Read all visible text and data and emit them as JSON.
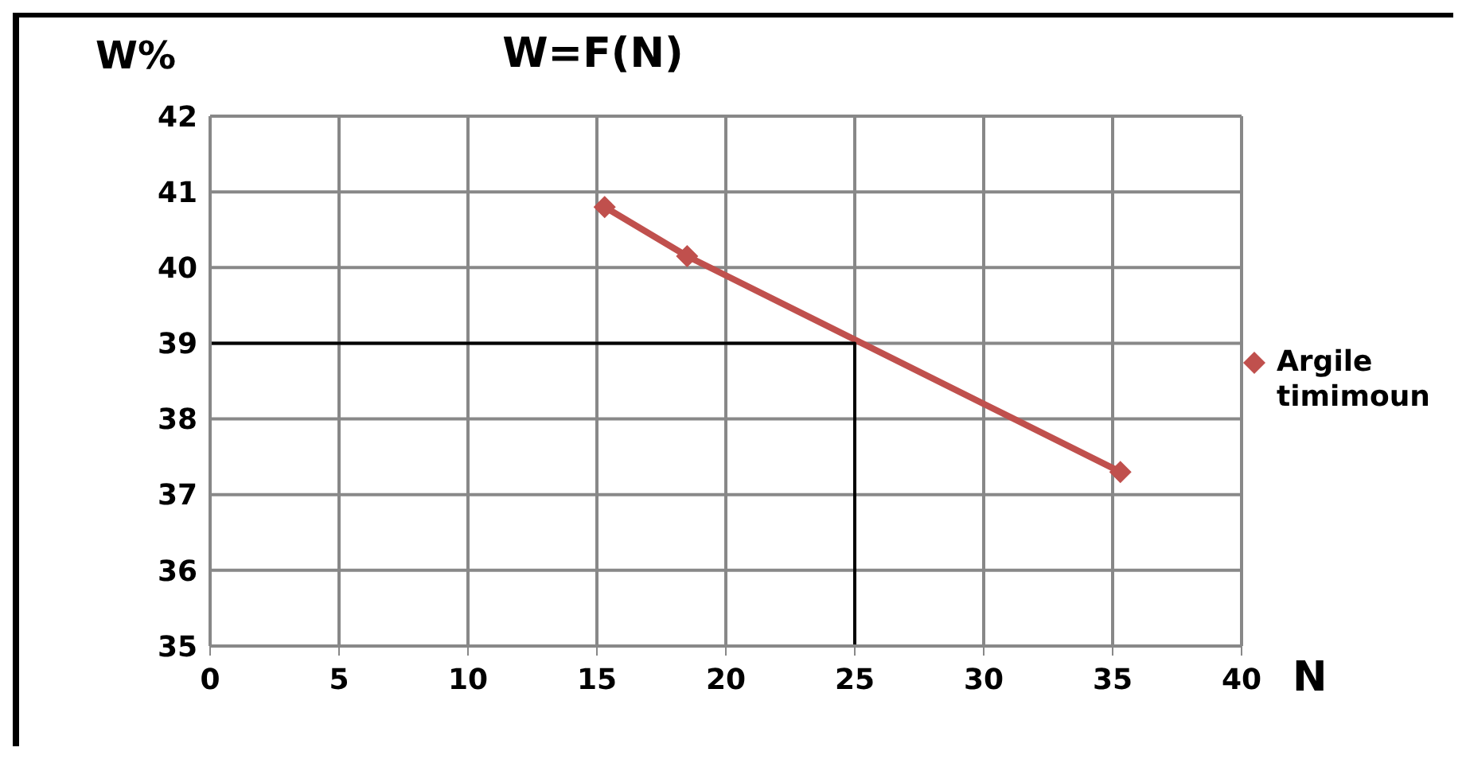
{
  "chart_data": {
    "type": "line",
    "title": "W=F(N)",
    "xlabel": "N",
    "ylabel": "W%",
    "series": [
      {
        "name": "Argile timimoun",
        "color": "#c0504d",
        "x": [
          15.3,
          18.5,
          35.3
        ],
        "values": [
          40.8,
          40.15,
          37.3
        ],
        "marker": "diamond"
      },
      {
        "color": "#000000",
        "x": [
          0,
          25,
          25
        ],
        "values": [
          39,
          39,
          35
        ],
        "marker": "none"
      }
    ],
    "xlim": [
      0,
      40
    ],
    "xticks": [
      0,
      5,
      10,
      15,
      20,
      25,
      30,
      35,
      40
    ],
    "ylim": [
      35,
      42
    ],
    "yticks": [
      35,
      36,
      37,
      38,
      39,
      40,
      41,
      42
    ],
    "grid": true,
    "legend": "right",
    "line_style": "solid"
  }
}
